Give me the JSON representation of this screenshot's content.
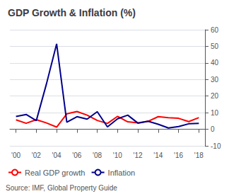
{
  "chart_data": {
    "type": "line",
    "title": "GDP Growth & Inflation (%)",
    "annotations": [
      "Source: IMF, Global Property Guide"
    ],
    "x": [
      2000,
      2001,
      2002,
      2003,
      2004,
      2005,
      2006,
      2007,
      2008,
      2009,
      2010,
      2011,
      2012,
      2013,
      2014,
      2015,
      2016,
      2017,
      2018
    ],
    "series": [
      {
        "name": "Real GDP growth",
        "color": "#ff0000",
        "values": [
          5.7,
          3.6,
          5.8,
          3.8,
          1.3,
          9.3,
          10.7,
          8.5,
          5.3,
          3.5,
          7.8,
          4.5,
          3.9,
          4.8,
          7.6,
          7.0,
          6.6,
          4.6,
          7.0
        ]
      },
      {
        "name": "Inflation",
        "color": "#00008b",
        "values": [
          7.7,
          8.9,
          5.2,
          27.4,
          51.5,
          4.2,
          7.6,
          6.1,
          10.6,
          1.4,
          6.3,
          8.5,
          3.7,
          4.8,
          3.0,
          0.8,
          1.6,
          3.3,
          3.6
        ]
      }
    ],
    "xlim": [
      1999.4,
      2018.6
    ],
    "xticks": [
      {
        "value": 2000,
        "label": "'00"
      },
      {
        "value": 2002,
        "label": "'02"
      },
      {
        "value": 2004,
        "label": "'04"
      },
      {
        "value": 2006,
        "label": "'06"
      },
      {
        "value": 2008,
        "label": "'08"
      },
      {
        "value": 2010,
        "label": "'10"
      },
      {
        "value": 2012,
        "label": "'12"
      },
      {
        "value": 2014,
        "label": "'14"
      },
      {
        "value": 2016,
        "label": "'16"
      },
      {
        "value": 2018,
        "label": "'18"
      }
    ],
    "ylim": [
      -10,
      60
    ],
    "yticks": [
      -10,
      0,
      10,
      20,
      30,
      40,
      50,
      60
    ],
    "grid": true,
    "legend": "lower left"
  }
}
